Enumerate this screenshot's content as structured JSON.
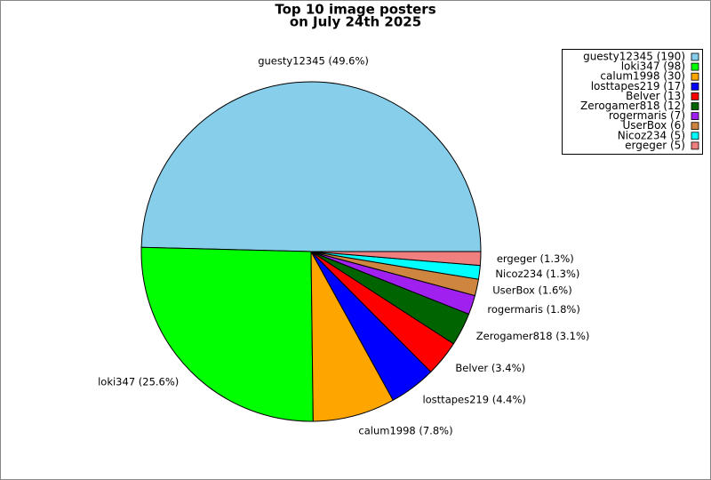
{
  "chart_data": {
    "type": "pie",
    "title": [
      "Top 10 image posters",
      "on July 24th 2025"
    ],
    "values": [
      190,
      98,
      30,
      17,
      13,
      12,
      7,
      6,
      5,
      5
    ],
    "value_labels": [
      "guesty12345 (49.6%)",
      "loki347 (25.6%)",
      "calum1998 (7.8%)",
      "losttapes219 (4.4%)",
      "Belver (3.4%)",
      "Zerogamer818 (3.1%)",
      "rogermaris (1.8%)",
      "UserBox (1.6%)",
      "Nicoz234 (1.3%)",
      "ergeger (1.3%)"
    ],
    "legend": [
      "guesty12345 (190)",
      "loki347 (98)",
      "calum1998 (30)",
      "losttapes219 (17)",
      "Belver (13)",
      "Zerogamer818 (12)",
      "rogermaris (7)",
      "UserBox (6)",
      "Nicoz234 (5)",
      "ergeger (5)"
    ],
    "colors": [
      "#87ceeb",
      "#00ff00",
      "#ffa500",
      "#0000ff",
      "#ff0000",
      "#006400",
      "#a020f0",
      "#cd853f",
      "#00ffff",
      "#f08080"
    ],
    "legend_position": "upper right"
  }
}
